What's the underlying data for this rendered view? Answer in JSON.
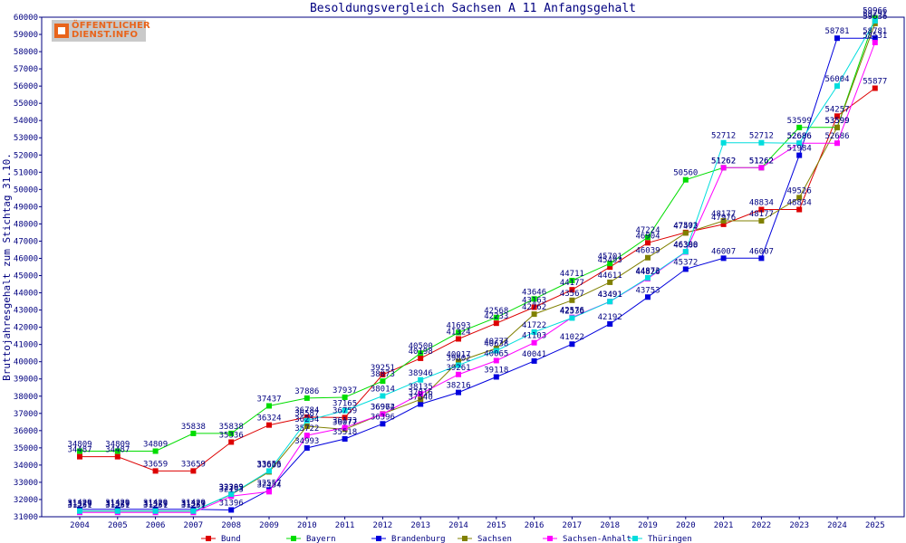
{
  "logo": {
    "line1": "ÖFFENTLICHER",
    "line2": "DIENST.INFO"
  },
  "chart_data": {
    "type": "line",
    "title": "Besoldungsvergleich Sachsen A 11 Anfangsgehalt",
    "ylabel": "Bruttojahresgehalt zum Stichtag 31.10.",
    "xlabel": "",
    "ylim": [
      31000,
      60000
    ],
    "ytick_step": 1000,
    "grid": false,
    "legend_position": "bottom",
    "categories": [
      "2004",
      "2005",
      "2006",
      "2007",
      "2008",
      "2009",
      "2010",
      "2011",
      "2012",
      "2013",
      "2014",
      "2015",
      "2016",
      "2017",
      "2018",
      "2019",
      "2020",
      "2021",
      "2022",
      "2023",
      "2024",
      "2025"
    ],
    "series": [
      {
        "name": "Bund",
        "color": "#dd0000",
        "values": [
          34487,
          34487,
          33659,
          33659,
          35336,
          36324,
          36784,
          36759,
          39251,
          40198,
          41324,
          42233,
          43163,
          44177,
          45493,
          46904,
          47503,
          47976,
          48834,
          48834,
          54257,
          55877
        ]
      },
      {
        "name": "Bayern",
        "color": "#00dd00",
        "values": [
          34809,
          34809,
          34809,
          35838,
          35838,
          37437,
          37886,
          37937,
          38873,
          40500,
          41693,
          42568,
          43646,
          44711,
          45701,
          47224,
          50560,
          51262,
          51262,
          53599,
          53599,
          59966
        ]
      },
      {
        "name": "Brandenburg",
        "color": "#0000dd",
        "values": [
          31429,
          31429,
          31429,
          31429,
          31396,
          32557,
          34993,
          35518,
          36396,
          37540,
          38216,
          39118,
          40041,
          41022,
          42192,
          43753,
          45372,
          46007,
          46007,
          51984,
          58781,
          58781
        ]
      },
      {
        "name": "Sachsen",
        "color": "#808000",
        "values": [
          31329,
          31329,
          31329,
          31329,
          32293,
          33603,
          36254,
          36077,
          36974,
          37816,
          40017,
          40777,
          42762,
          43567,
          44611,
          46039,
          47472,
          48177,
          48177,
          49526,
          53599,
          59636
        ]
      },
      {
        "name": "Sachsen-Anhalt",
        "color": "#ff00ff",
        "values": [
          31251,
          31251,
          31251,
          31251,
          32193,
          32454,
          35722,
          36173,
          36962,
          38135,
          39261,
          40065,
          41103,
          42576,
          43491,
          44826,
          46368,
          51262,
          51262,
          52686,
          52686,
          58531
        ]
      },
      {
        "name": "Thüringen",
        "color": "#00dddd",
        "values": [
          31329,
          31329,
          31329,
          31329,
          32309,
          33656,
          36587,
          37165,
          38014,
          38946,
          39802,
          40638,
          41722,
          42536,
          43491,
          44873,
          46390,
          52712,
          52712,
          52686,
          56004,
          59791
        ]
      }
    ]
  }
}
